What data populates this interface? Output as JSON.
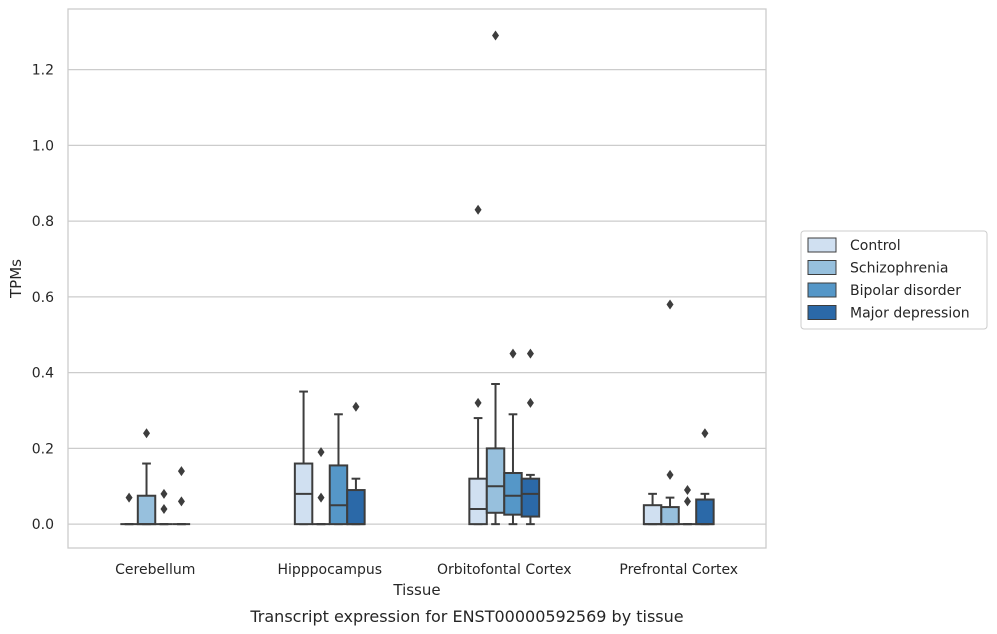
{
  "caption": "Transcript expression for ENST00000592569 by tissue",
  "chart_data": {
    "type": "box",
    "xlabel": "Tissue",
    "ylabel": "TPMs",
    "ylim": [
      -0.063,
      1.36
    ],
    "yticks": [
      "0.0",
      "0.2",
      "0.4",
      "0.6",
      "0.8",
      "1.0",
      "1.2"
    ],
    "grid": true,
    "legend_position": "right",
    "categories": [
      "Cerebellum",
      "Hipppocampus",
      "Orbitofontal Cortex",
      "Prefrontal Cortex"
    ],
    "series": [
      {
        "name": "Control",
        "color": "#d0e0f1",
        "boxes": [
          {
            "q1": 0,
            "median": 0,
            "q3": 0,
            "whisker_low": 0,
            "whisker_high": 0,
            "outliers": [
              0.07
            ]
          },
          {
            "q1": 0,
            "median": 0.08,
            "q3": 0.16,
            "whisker_low": 0,
            "whisker_high": 0.35,
            "outliers": []
          },
          {
            "q1": 0,
            "median": 0.04,
            "q3": 0.12,
            "whisker_low": 0,
            "whisker_high": 0.28,
            "outliers": [
              0.32,
              0.83
            ]
          },
          {
            "q1": 0,
            "median": 0,
            "q3": 0.05,
            "whisker_low": 0,
            "whisker_high": 0.08,
            "outliers": []
          }
        ]
      },
      {
        "name": "Schizophrenia",
        "color": "#97c0dd",
        "boxes": [
          {
            "q1": 0,
            "median": 0,
            "q3": 0.075,
            "whisker_low": 0,
            "whisker_high": 0.16,
            "outliers": [
              0.24
            ]
          },
          {
            "q1": 0,
            "median": 0,
            "q3": 0,
            "whisker_low": 0,
            "whisker_high": 0,
            "outliers": [
              0.07,
              0.19
            ]
          },
          {
            "q1": 0.03,
            "median": 0.1,
            "q3": 0.2,
            "whisker_low": 0,
            "whisker_high": 0.37,
            "outliers": [
              1.29
            ]
          },
          {
            "q1": 0,
            "median": 0,
            "q3": 0.045,
            "whisker_low": 0,
            "whisker_high": 0.07,
            "outliers": [
              0.13,
              0.58
            ]
          }
        ]
      },
      {
        "name": "Bipolar disorder",
        "color": "#5597c8",
        "boxes": [
          {
            "q1": 0,
            "median": 0,
            "q3": 0,
            "whisker_low": 0,
            "whisker_high": 0,
            "outliers": [
              0.04,
              0.08
            ]
          },
          {
            "q1": 0,
            "median": 0.05,
            "q3": 0.155,
            "whisker_low": 0,
            "whisker_high": 0.29,
            "outliers": []
          },
          {
            "q1": 0.025,
            "median": 0.075,
            "q3": 0.135,
            "whisker_low": 0,
            "whisker_high": 0.29,
            "outliers": [
              0.45
            ]
          },
          {
            "q1": 0,
            "median": 0,
            "q3": 0,
            "whisker_low": 0,
            "whisker_high": 0,
            "outliers": [
              0.06,
              0.09
            ]
          }
        ]
      },
      {
        "name": "Major depression",
        "color": "#2b69a8",
        "boxes": [
          {
            "q1": 0,
            "median": 0,
            "q3": 0,
            "whisker_low": 0,
            "whisker_high": 0,
            "outliers": [
              0.06,
              0.14
            ]
          },
          {
            "q1": 0,
            "median": 0,
            "q3": 0.09,
            "whisker_low": 0,
            "whisker_high": 0.12,
            "outliers": [
              0.31
            ]
          },
          {
            "q1": 0.02,
            "median": 0.08,
            "q3": 0.12,
            "whisker_low": 0,
            "whisker_high": 0.13,
            "outliers": [
              0.32,
              0.45
            ]
          },
          {
            "q1": 0,
            "median": 0,
            "q3": 0.065,
            "whisker_low": 0,
            "whisker_high": 0.08,
            "outliers": [
              0.24
            ]
          }
        ]
      }
    ]
  }
}
